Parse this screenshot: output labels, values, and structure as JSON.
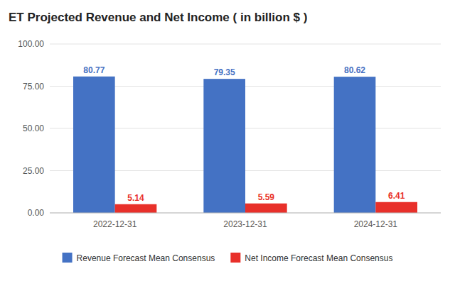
{
  "chart_data": {
    "type": "bar",
    "title": "ET Projected Revenue and Net Income ( in billion $ )",
    "categories": [
      "2022-12-31",
      "2023-12-31",
      "2024-12-31"
    ],
    "series": [
      {
        "name": "Revenue Forecast Mean Consensus",
        "color": "#4472C4",
        "values": [
          80.77,
          79.35,
          80.62
        ]
      },
      {
        "name": "Net Income Forecast Mean Consensus",
        "color": "#E8302A",
        "values": [
          5.14,
          5.59,
          6.41
        ]
      }
    ],
    "ylim": [
      0,
      100
    ],
    "yticks": [
      {
        "value": 0,
        "label": "0.00"
      },
      {
        "value": 25,
        "label": "25.00"
      },
      {
        "value": 50,
        "label": "50.00"
      },
      {
        "value": 75,
        "label": "75.00"
      },
      {
        "value": 100,
        "label": "100.00"
      }
    ],
    "grid": true,
    "data_labels": true,
    "legend": "bottom"
  }
}
